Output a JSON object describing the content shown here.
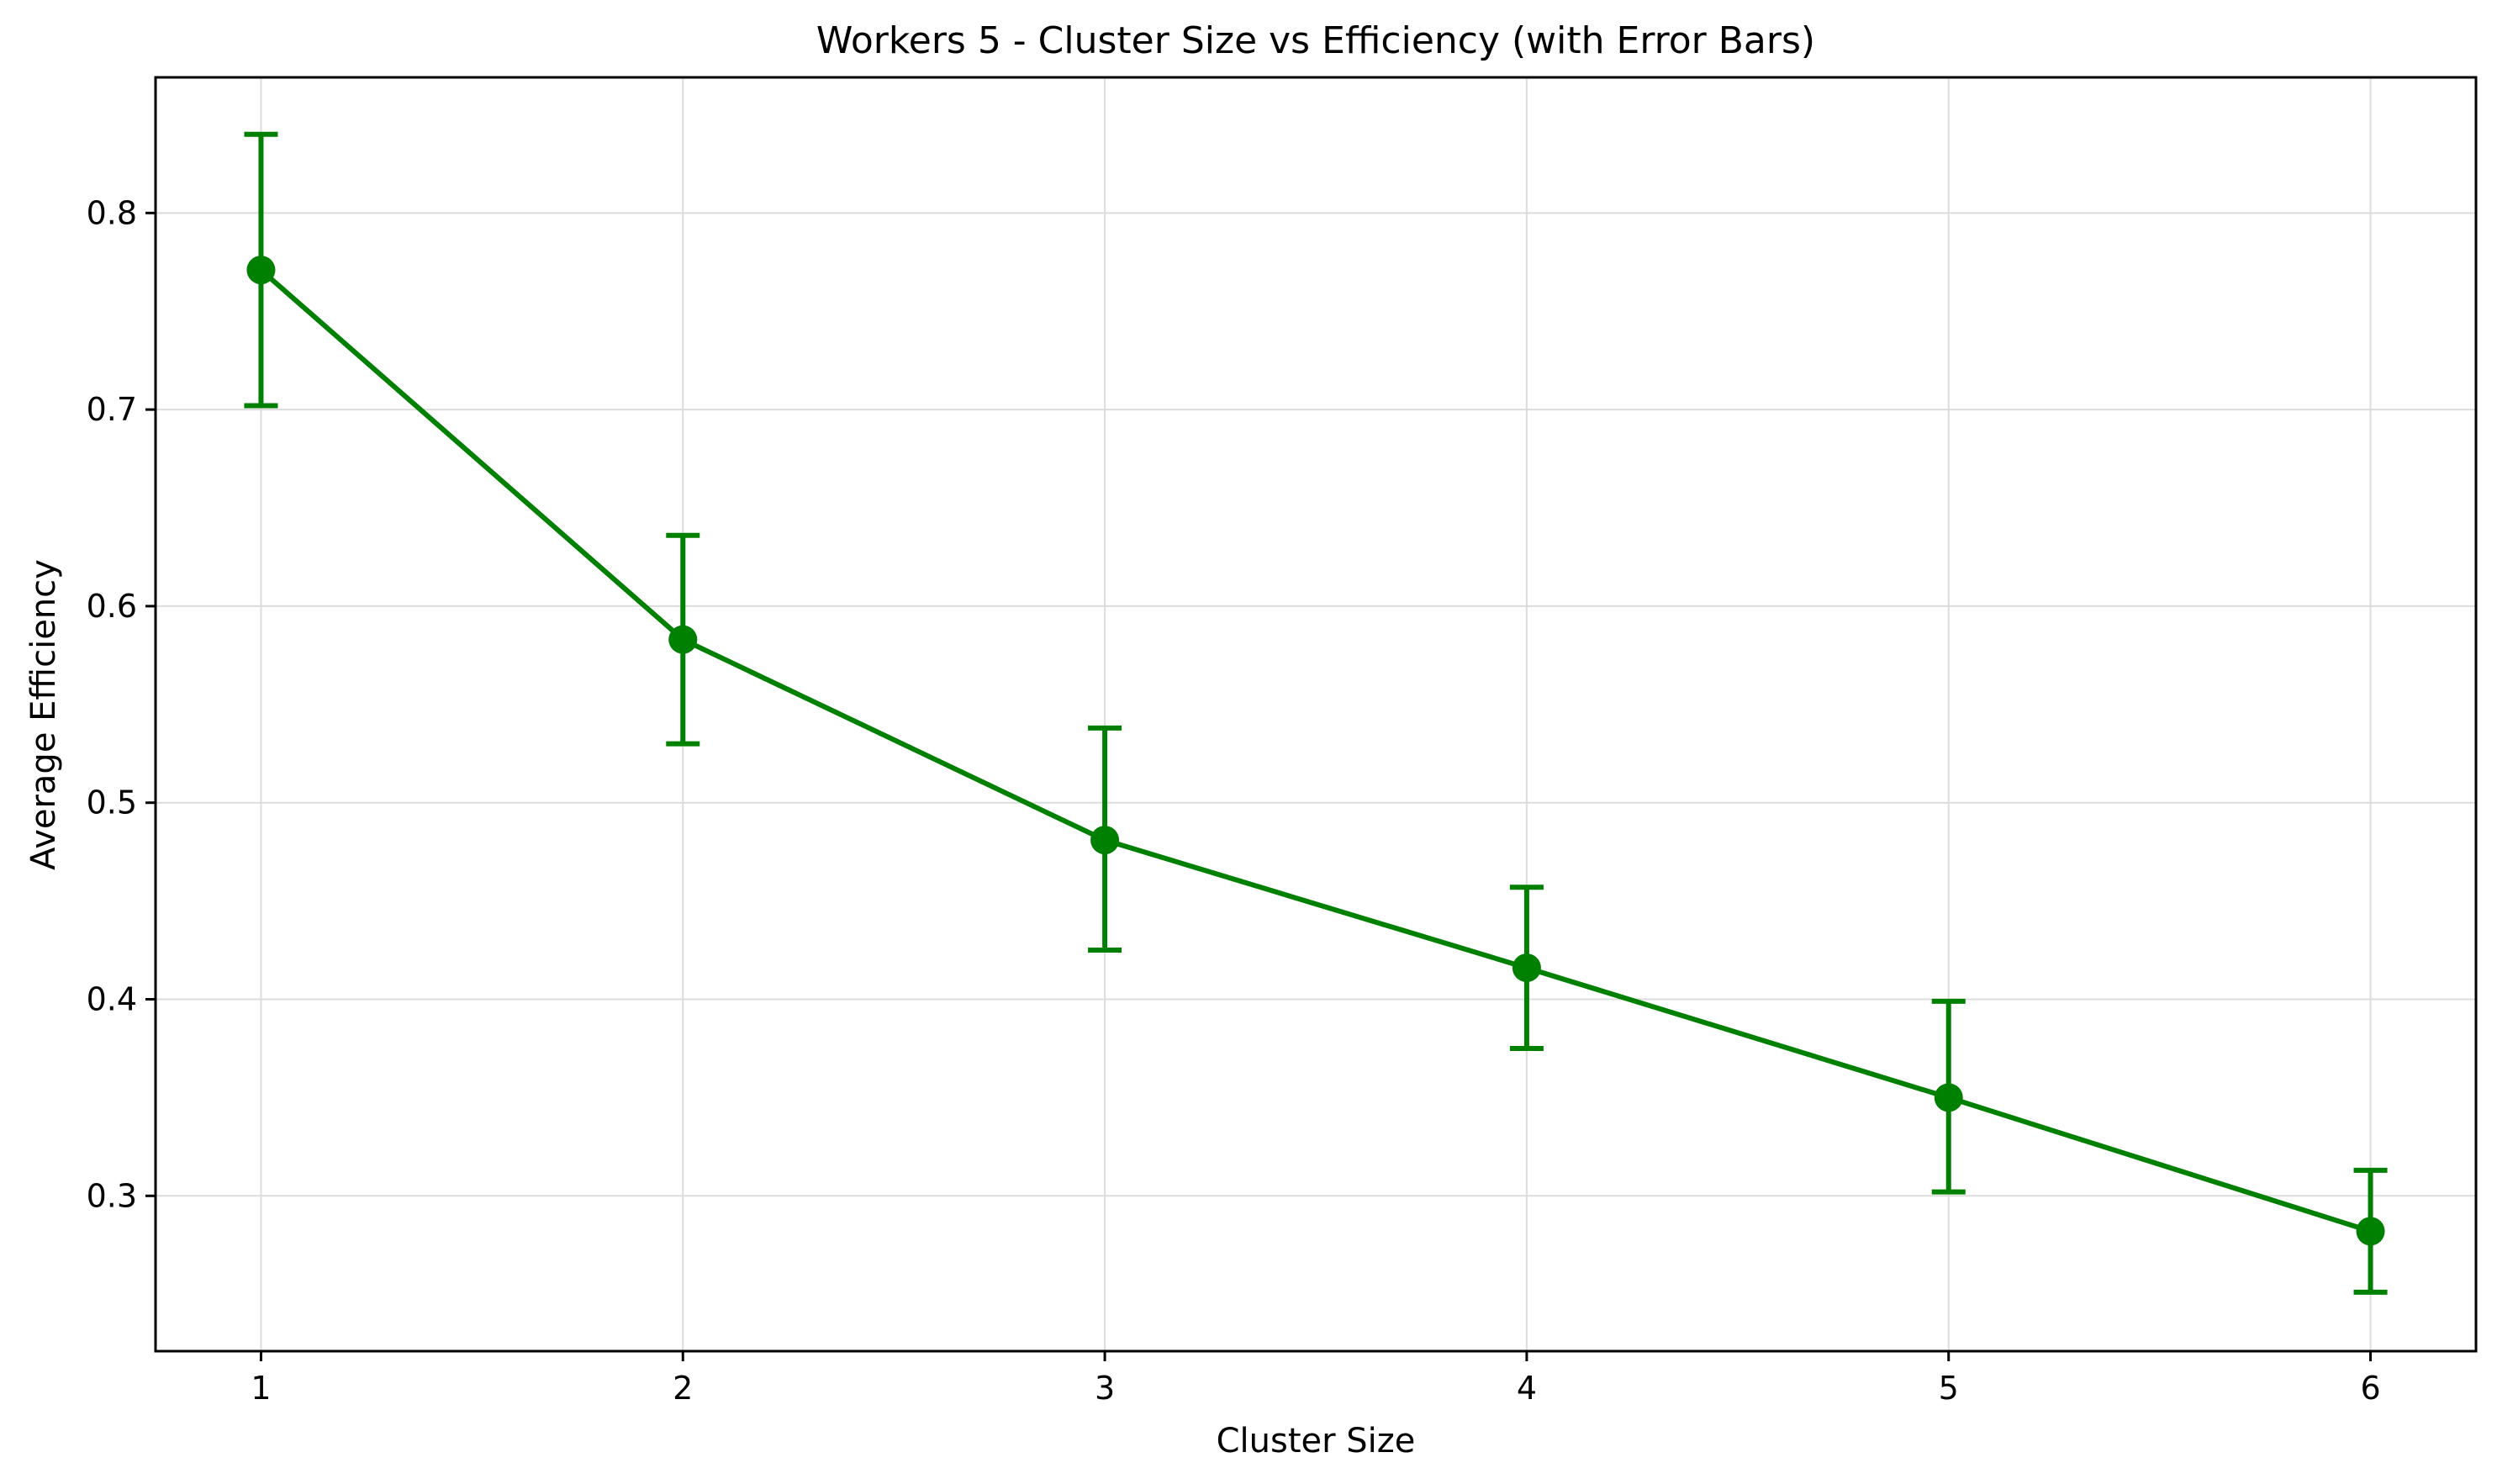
{
  "chart_data": {
    "type": "line",
    "title": "Workers 5 - Cluster Size vs Efficiency (with Error Bars)",
    "xlabel": "Cluster Size",
    "ylabel": "Average Efficiency",
    "x": [
      1,
      2,
      3,
      4,
      5,
      6
    ],
    "series": [
      {
        "values": [
          0.771,
          0.583,
          0.481,
          0.416,
          0.35,
          0.282
        ],
        "error_low": [
          0.702,
          0.53,
          0.425,
          0.375,
          0.302,
          0.251
        ],
        "error_high": [
          0.84,
          0.636,
          0.538,
          0.457,
          0.399,
          0.313
        ],
        "color": "#008000",
        "marker": "circle",
        "error_bars": true
      }
    ],
    "xlim": [
      0.75,
      6.25
    ],
    "ylim": [
      0.221,
      0.869
    ],
    "xticks": [
      1,
      2,
      3,
      4,
      5,
      6
    ],
    "yticks": [
      0.3,
      0.4,
      0.5,
      0.6,
      0.7,
      0.8
    ],
    "ytick_labels": [
      "0.3",
      "0.4",
      "0.5",
      "0.6",
      "0.7",
      "0.8"
    ],
    "grid": true,
    "legend": false
  }
}
